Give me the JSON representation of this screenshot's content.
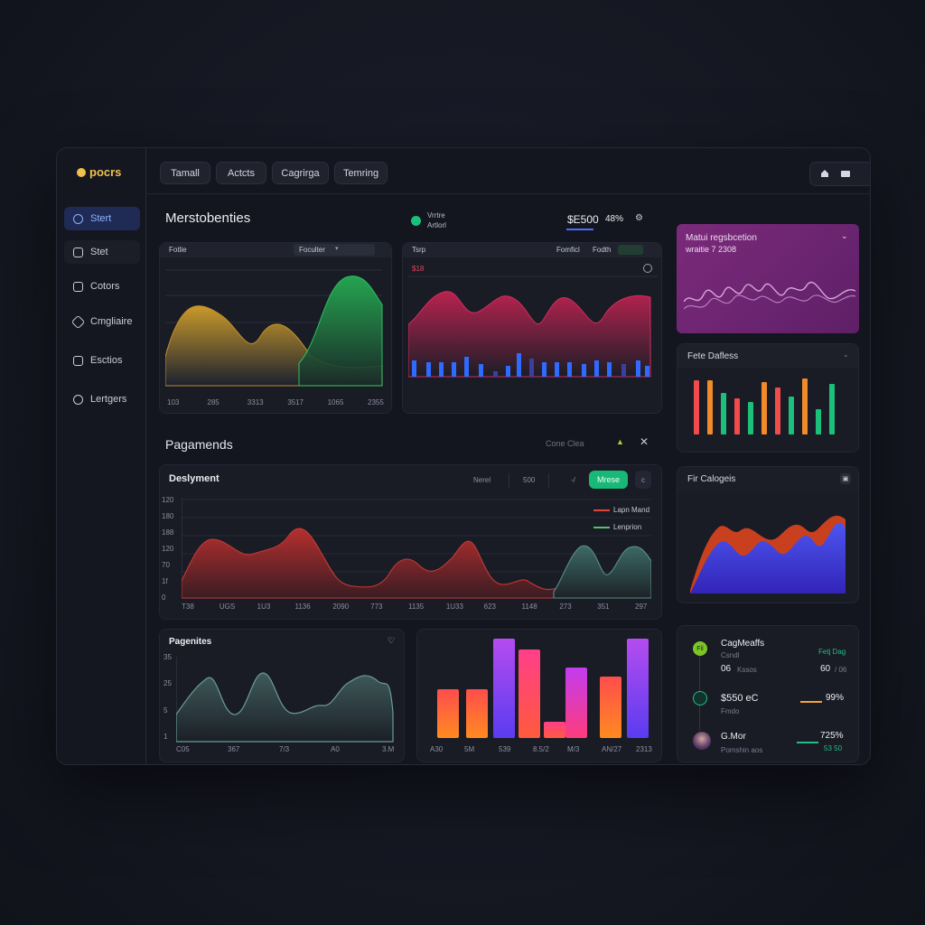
{
  "app": {
    "logo_text": "pocrs"
  },
  "sidebar": {
    "items": [
      {
        "label": "Stert"
      },
      {
        "label": "Stet"
      },
      {
        "label": "Cotors"
      },
      {
        "label": "Cmgliaire"
      },
      {
        "label": "Esctios"
      },
      {
        "label": "Lertgers"
      }
    ]
  },
  "header": {
    "tabs": [
      "Tamall",
      "Actcts",
      "Cagrirga",
      "Temring"
    ]
  },
  "overview": {
    "title": "Merstobenties",
    "status_line1": "Vrrtre",
    "status_line2": "Artlorl",
    "status_color": "#18c07a",
    "metric_value": "$E500",
    "metric_pct": "48%"
  },
  "chart1": {
    "header_label": "Fotlie",
    "filter_label": "Foculter",
    "x_ticks": [
      "103",
      "285",
      "3313",
      "3517",
      "1065",
      "2355"
    ]
  },
  "chart2": {
    "header_label": "Tsrp",
    "filter_a": "Fomficl",
    "filter_b": "Fodth",
    "subtitle": "$18"
  },
  "promo": {
    "line1": "Matui regsbcetion",
    "line2": "wraitie 7 2308",
    "accent": "#7b2a7a"
  },
  "fete": {
    "title": "Fete Dafless"
  },
  "payments": {
    "title": "Pagamends",
    "filter_label": "Cone Clea"
  },
  "deployment": {
    "title": "Deslyment",
    "ctl_a": "Nerel",
    "ctl_b": "500",
    "ctl_c": "-/",
    "action_label": "Mrese",
    "ctl_d": "c",
    "legend": [
      {
        "name": "Lapn Mand",
        "color": "#e0463e"
      },
      {
        "name": "Lenprion",
        "color": "#52c56a"
      }
    ],
    "y_ticks": [
      "120",
      "180",
      "188",
      "120",
      "70",
      "1f",
      "0"
    ],
    "x_ticks": [
      "T38",
      "UGS",
      "1U3",
      "1136",
      "2090",
      "773",
      "1135",
      "1U33",
      "623",
      "1148",
      "273",
      "351",
      "297"
    ]
  },
  "collapse": {
    "title": "Fir Calogeis"
  },
  "pagenites": {
    "title": "Pagenites",
    "y_ticks": [
      "35",
      "25",
      "5",
      "1"
    ],
    "x_ticks": [
      "C05",
      "367",
      "7/3",
      "A0",
      "3.M"
    ]
  },
  "bars_card": {
    "x_ticks": [
      "A30",
      "5M",
      "539",
      "8.5/2",
      "M/3",
      "AN/27",
      "2313"
    ]
  },
  "people": {
    "rows": [
      {
        "name": "CagMeaffs",
        "sub": "Csndl",
        "value1": "06",
        "value1_sub": "Kssos",
        "right_top": "Fetj Dag",
        "right_value": "60",
        "right_sub": "/ 06",
        "avatar": "Fil",
        "avatar_color": "#7ac625"
      },
      {
        "name": "$550 eC",
        "sub": "Fmdo",
        "right_value": "99%",
        "bar_color": "#f2a43a"
      },
      {
        "name": "G.Mor",
        "sub": "Pomshin aos",
        "right_value": "725%",
        "right_sub": "53 50",
        "bar_color": "#1fbf87"
      }
    ]
  }
}
